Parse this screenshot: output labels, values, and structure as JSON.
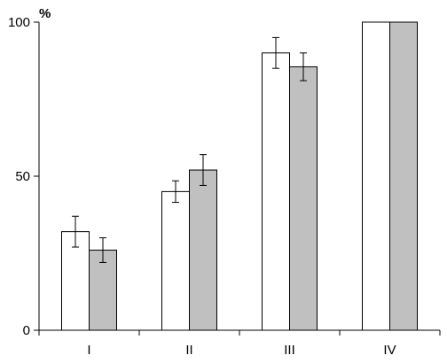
{
  "chart_data": {
    "type": "bar",
    "title": "",
    "xlabel": "",
    "ylabel": "%",
    "ylim": [
      0,
      100
    ],
    "yticks": [
      0,
      50,
      100
    ],
    "grid": false,
    "categories": [
      "I",
      "II",
      "III",
      "IV"
    ],
    "series": [
      {
        "color": "#ffffff",
        "values": [
          32,
          45,
          90,
          100
        ],
        "errors": [
          5,
          3.5,
          5,
          0
        ]
      },
      {
        "color": "#c0c0c0",
        "values": [
          26,
          52,
          85.5,
          100
        ],
        "errors": [
          4,
          5,
          4.5,
          0
        ]
      }
    ]
  }
}
